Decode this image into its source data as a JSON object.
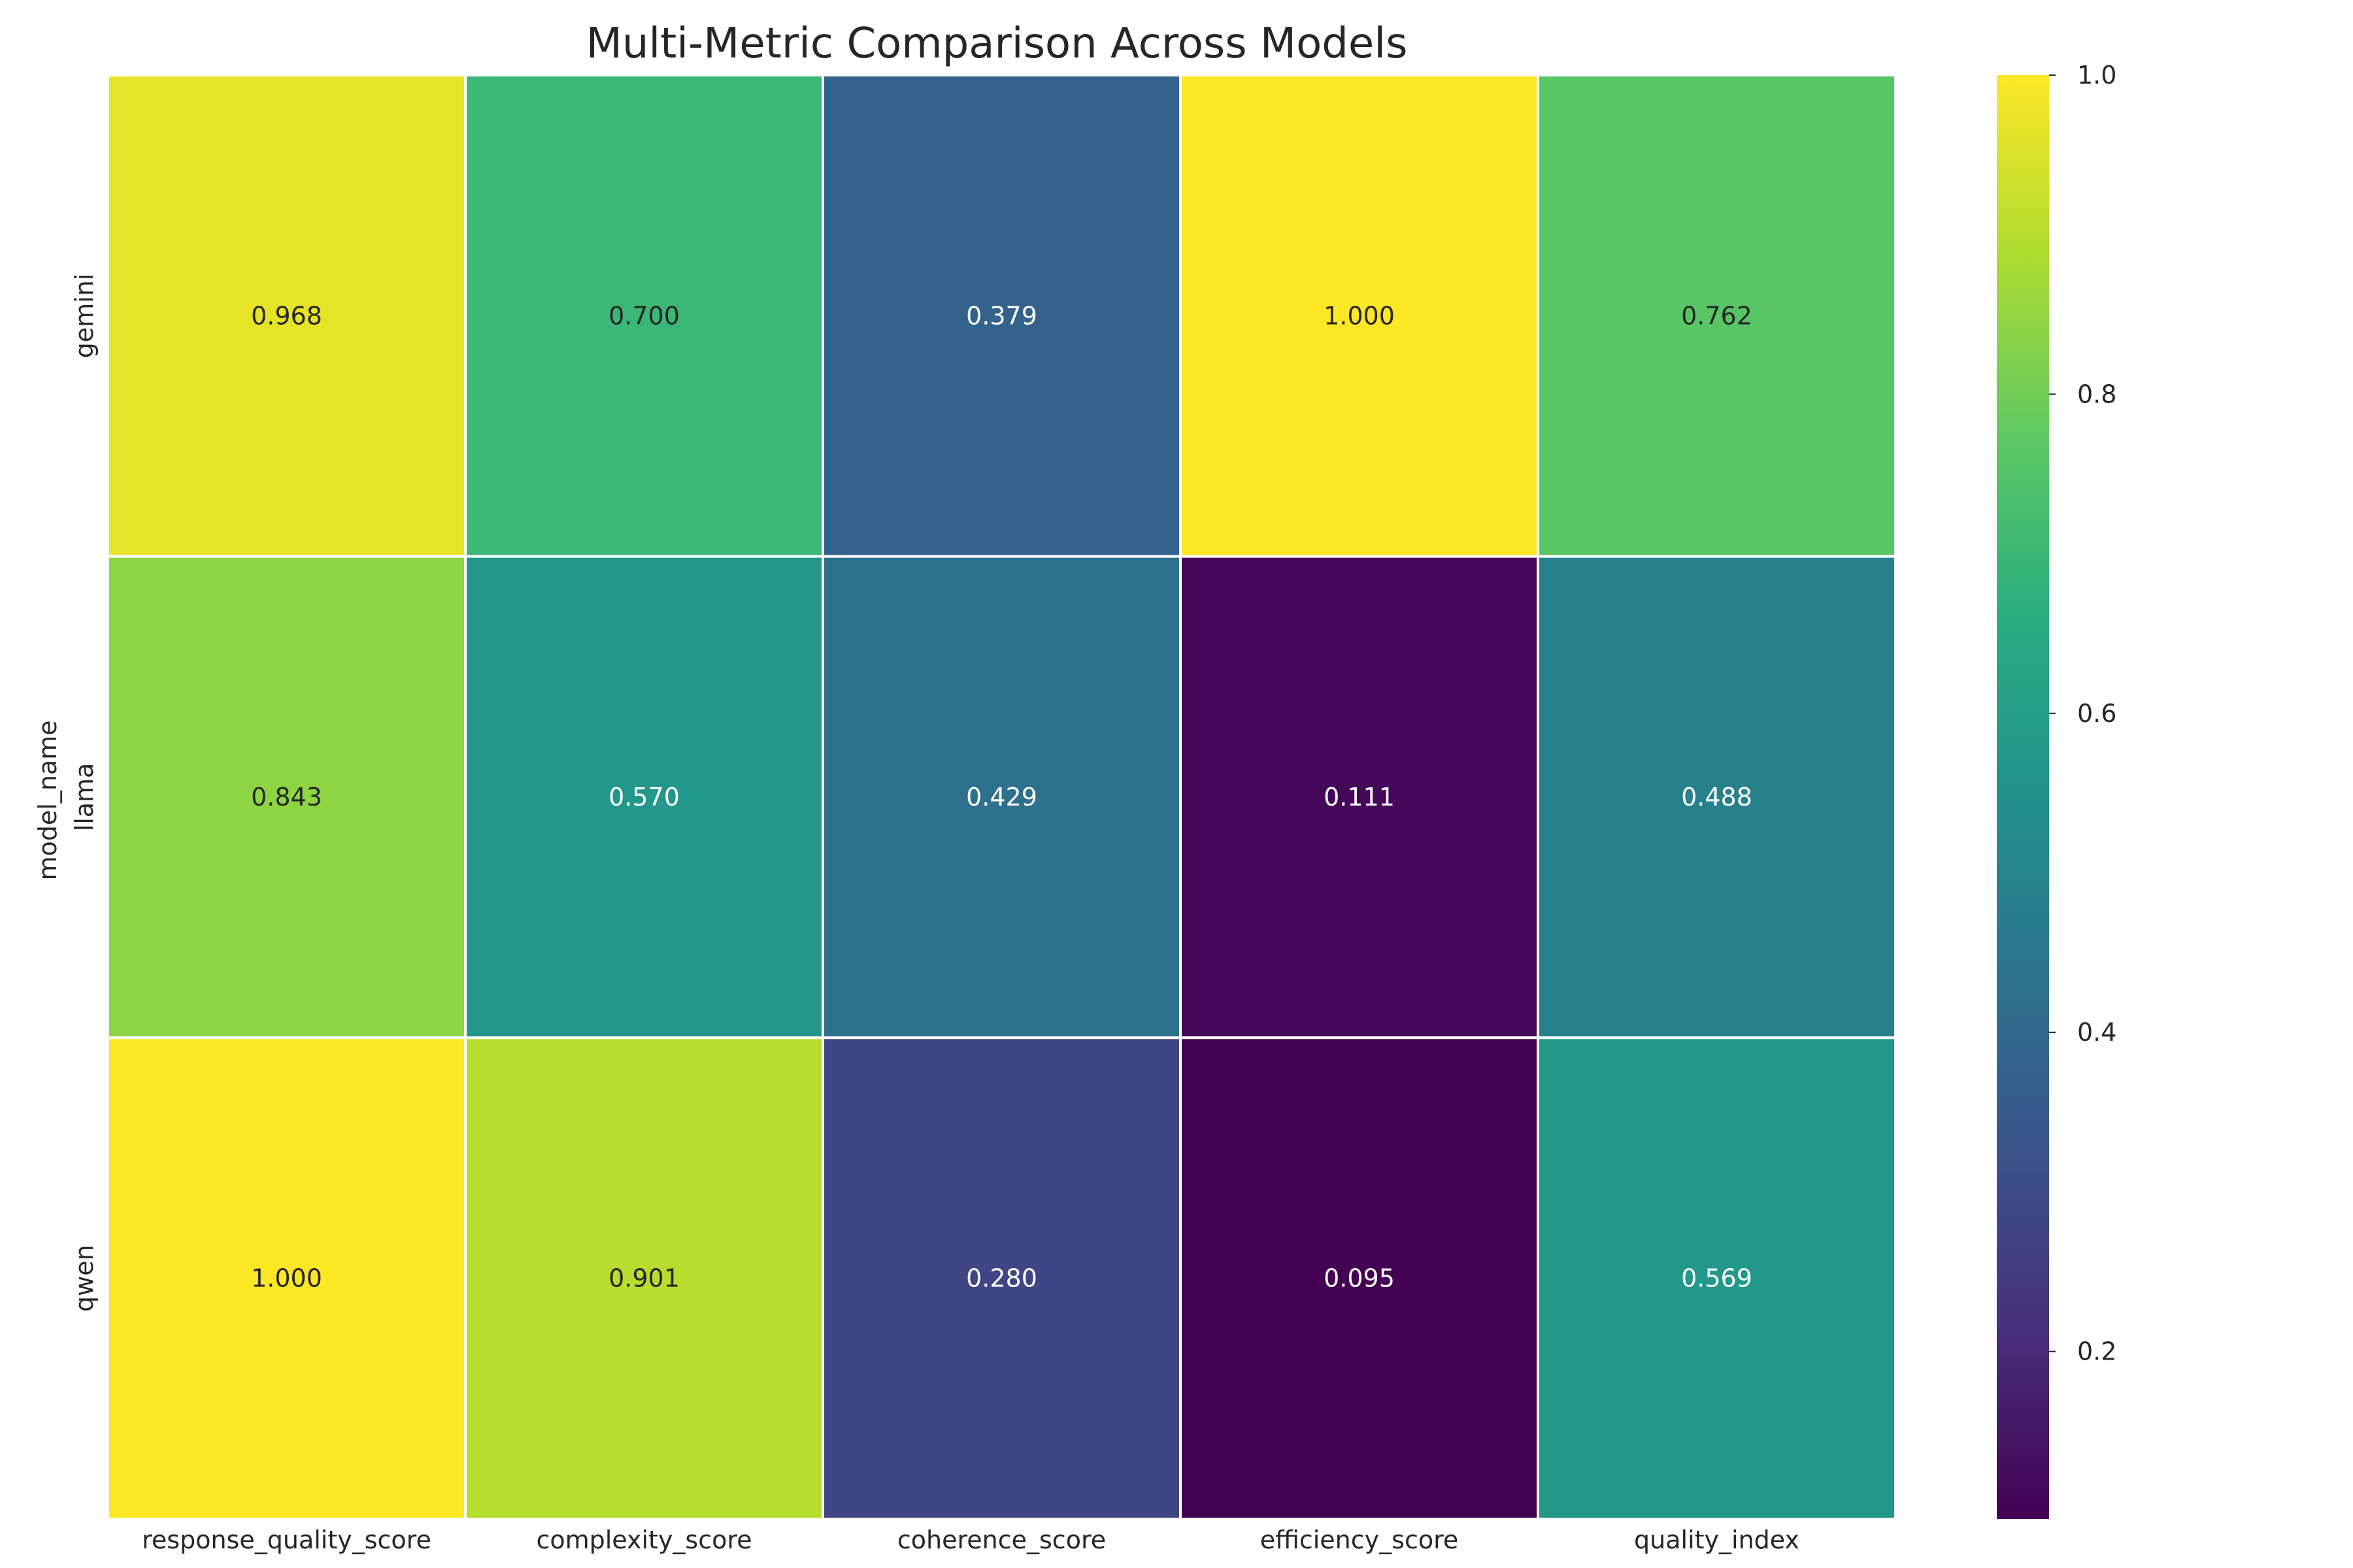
{
  "chart_data": {
    "type": "heatmap",
    "title": "Multi-Metric Comparison Across Models",
    "xlabel": "",
    "ylabel": "model_name",
    "x_categories": [
      "response_quality_score",
      "complexity_score",
      "coherence_score",
      "efficiency_score",
      "quality_index"
    ],
    "y_categories": [
      "gemini",
      "llama",
      "qwen"
    ],
    "values": [
      [
        0.968,
        0.7,
        0.379,
        1.0,
        0.762
      ],
      [
        0.843,
        0.57,
        0.429,
        0.111,
        0.488
      ],
      [
        1.0,
        0.901,
        0.28,
        0.095,
        0.569
      ]
    ],
    "value_labels": [
      [
        "0.968",
        "0.700",
        "0.379",
        "1.000",
        "0.762"
      ],
      [
        "0.843",
        "0.570",
        "0.429",
        "0.111",
        "0.488"
      ],
      [
        "1.000",
        "0.901",
        "0.280",
        "0.095",
        "0.569"
      ]
    ],
    "colormap": "viridis",
    "color_range": [
      0.095,
      1.0
    ],
    "colorbar_ticks": [
      "0.2",
      "0.4",
      "0.6",
      "0.8",
      "1.0"
    ],
    "colorbar_tick_values": [
      0.2,
      0.4,
      0.6,
      0.8,
      1.0
    ],
    "grid": false,
    "cell_border_color": "#ffffff"
  }
}
